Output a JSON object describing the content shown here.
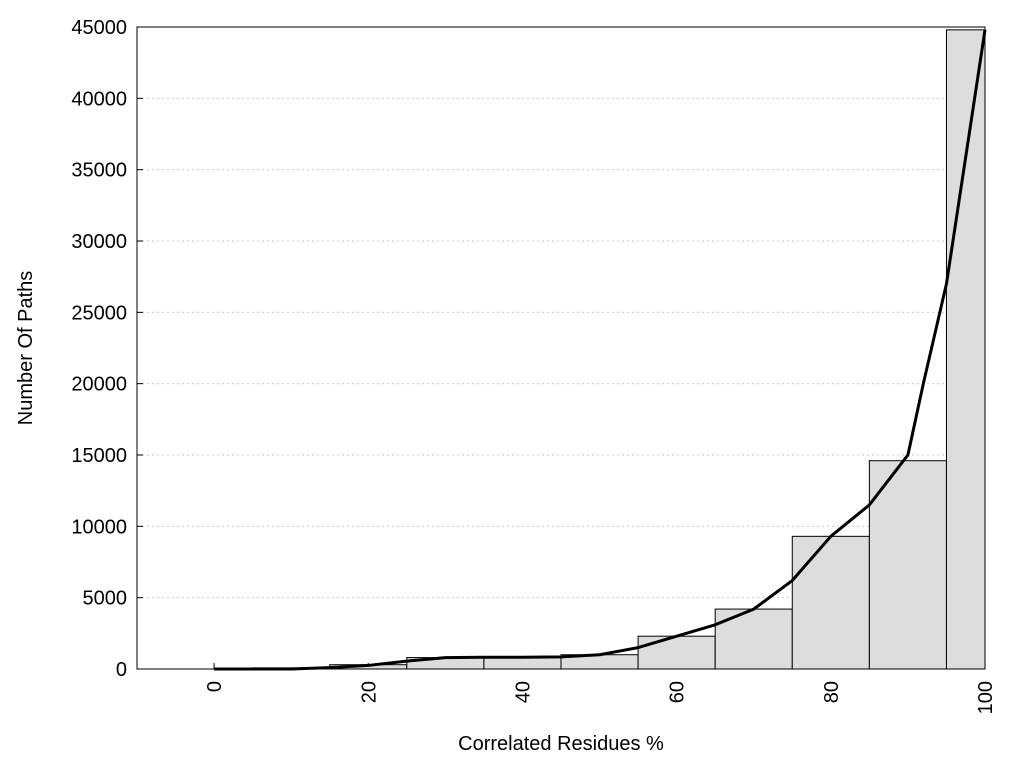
{
  "chart_data": {
    "type": "histogram",
    "x_label": "Correlated Residues %",
    "y_label": "Number Of Paths",
    "bins": [
      0,
      5,
      15,
      25,
      35,
      45,
      55,
      65,
      75,
      85,
      95,
      100
    ],
    "values": [
      50,
      80,
      300,
      800,
      850,
      1000,
      2300,
      4200,
      9300,
      14600,
      44800
    ],
    "color": "#dddddd",
    "curve": {
      "x": [
        0,
        10,
        15,
        20,
        25,
        30,
        35,
        40,
        45,
        50,
        55,
        60,
        65,
        70,
        75,
        80,
        85,
        90,
        92,
        95,
        100
      ],
      "values": [
        0,
        0,
        100,
        250,
        550,
        800,
        820,
        820,
        850,
        1000,
        1500,
        2300,
        3100,
        4200,
        6200,
        9300,
        11500,
        15000,
        20000,
        27000,
        44800
      ],
      "color": "#000000"
    },
    "xlim": [
      -10,
      100
    ],
    "xticks": [
      0,
      20,
      40,
      60,
      80,
      100
    ],
    "ylim": [
      0,
      45000
    ],
    "yticks": [
      0,
      5000,
      10000,
      15000,
      20000,
      25000,
      30000,
      35000,
      40000,
      45000
    ],
    "grid": true
  }
}
